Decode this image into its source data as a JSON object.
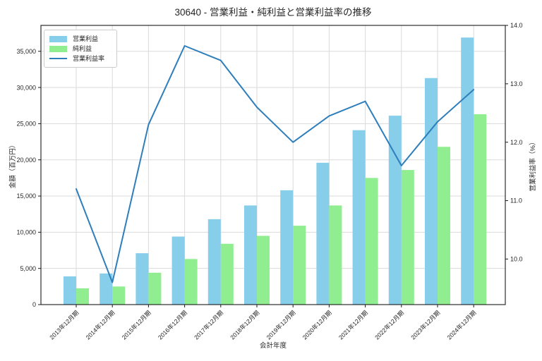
{
  "title": "30640 - 営業利益・純利益と営業利益率の推移",
  "legend": {
    "position": "upper left",
    "items": [
      {
        "label": "営業利益",
        "type": "patch",
        "color": "#87CEEB"
      },
      {
        "label": "純利益",
        "type": "patch",
        "color": "#90EE90"
      },
      {
        "label": "営業利益率",
        "type": "line",
        "color": "#2e7ebc"
      }
    ]
  },
  "chart_data": {
    "type": "bar",
    "title": "30640 - 営業利益・純利益と営業利益率の推移",
    "xlabel": "会計年度",
    "ylabel_left": "金額（百万円）",
    "ylabel_right": "営業利益率（%）",
    "grid": true,
    "categories": [
      "2013年12月期",
      "2014年12月期",
      "2015年12月期",
      "2016年12月期",
      "2017年12月期",
      "2018年12月期",
      "2019年12月期",
      "2020年12月期",
      "2021年12月期",
      "2022年12月期",
      "2023年12月期",
      "2024年12月期"
    ],
    "series": [
      {
        "name": "営業利益",
        "type": "bar",
        "axis": "left",
        "color": "#87CEEB",
        "values": [
          3900,
          4300,
          7100,
          9400,
          11800,
          13700,
          15800,
          19600,
          24100,
          26100,
          31300,
          36900
        ]
      },
      {
        "name": "純利益",
        "type": "bar",
        "axis": "left",
        "color": "#90EE90",
        "values": [
          2250,
          2500,
          4400,
          6300,
          8400,
          9500,
          10900,
          13700,
          17500,
          18600,
          21800,
          26300
        ]
      },
      {
        "name": "営業利益率",
        "type": "line",
        "axis": "right",
        "color": "#2e7ebc",
        "values": [
          11.2,
          9.6,
          12.3,
          13.65,
          13.4,
          12.6,
          12.0,
          12.45,
          12.7,
          11.6,
          12.35,
          12.9
        ]
      }
    ],
    "left_axis": {
      "range": [
        0,
        38580
      ],
      "ticks": [
        0,
        5000,
        10000,
        15000,
        20000,
        25000,
        30000,
        35000
      ],
      "tick_labels": [
        "0",
        "5,000",
        "10,000",
        "15,000",
        "20,000",
        "25,000",
        "30,000",
        "35,000"
      ]
    },
    "right_axis": {
      "range": [
        9.22,
        14.0
      ],
      "ticks": [
        10.0,
        11.0,
        12.0,
        13.0,
        14.0
      ],
      "tick_labels": [
        "10.0",
        "11.0",
        "12.0",
        "13.0",
        "14.0"
      ]
    },
    "colors": {
      "grid": "#dadada",
      "spine": "#1a1a1a",
      "tick_text": "#262626"
    }
  }
}
